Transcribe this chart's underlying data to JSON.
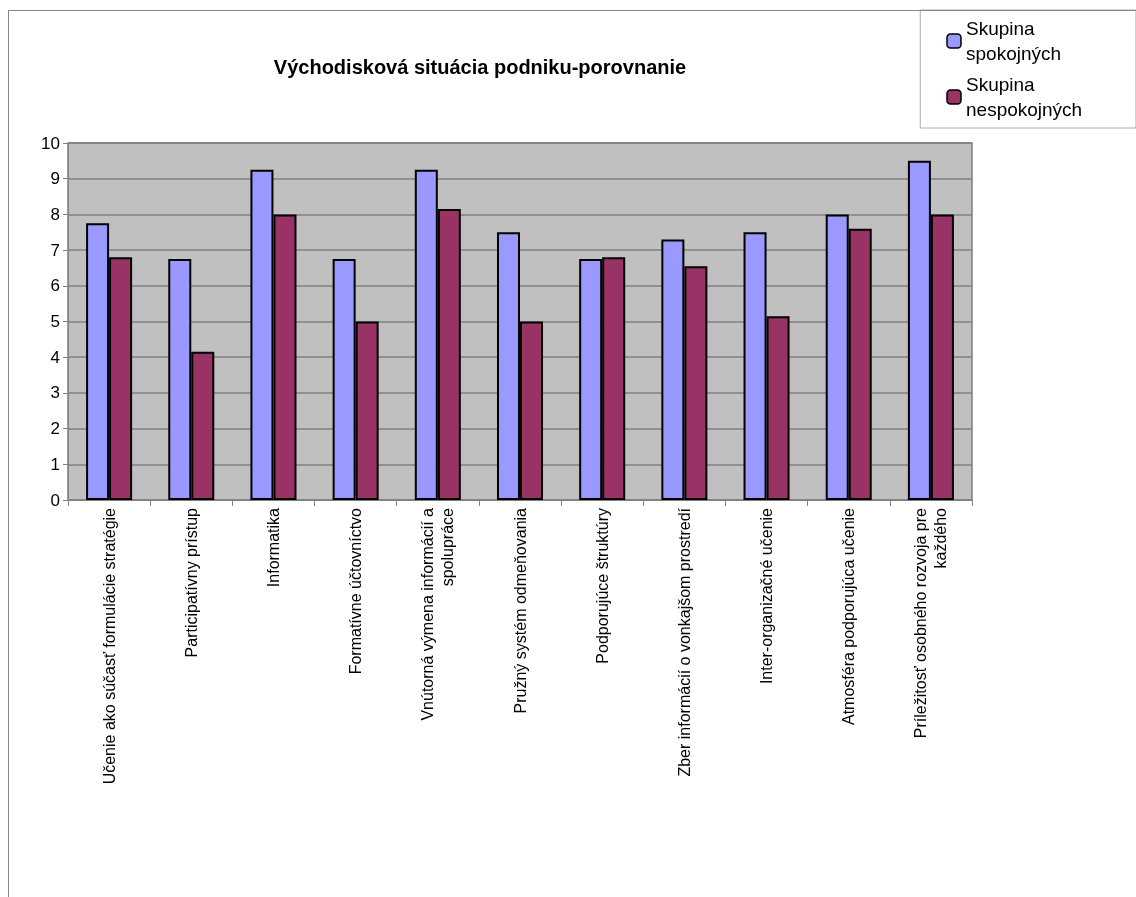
{
  "chart_data": {
    "type": "bar",
    "title": "Východisková situácia podniku-porovnanie",
    "categories": [
      "Učenie ako súčasť formulácie stratégie",
      "Participatívny prístup",
      "Informatika",
      "Formatívne účtovníctvo",
      "Vnútorná výmena informácií a\nspolupráce",
      "Pružný systém odmeňovania",
      "Podporujúce štruktúry",
      "Zber informácií o vonkajšom prostredí",
      "Inter-organizačné učenie",
      "Atmosféra podporujúca učenie",
      "Príležitosť osobného rozvoja pre\nkaždého"
    ],
    "series": [
      {
        "name": "Skupina spokojných",
        "color": "#9999ff",
        "values": [
          7.75,
          6.75,
          9.25,
          6.75,
          9.25,
          7.5,
          6.75,
          7.3,
          7.5,
          8,
          9.5
        ]
      },
      {
        "name": "Skupina nespokojných",
        "color": "#993366",
        "values": [
          6.8,
          4.15,
          8,
          5,
          8.15,
          5,
          6.8,
          6.55,
          5.15,
          7.6,
          8
        ]
      }
    ],
    "ylim": [
      0,
      10
    ],
    "yticks": [
      0,
      1,
      2,
      3,
      4,
      5,
      6,
      7,
      8,
      9,
      10
    ],
    "grid": "y",
    "legend": "top right"
  }
}
